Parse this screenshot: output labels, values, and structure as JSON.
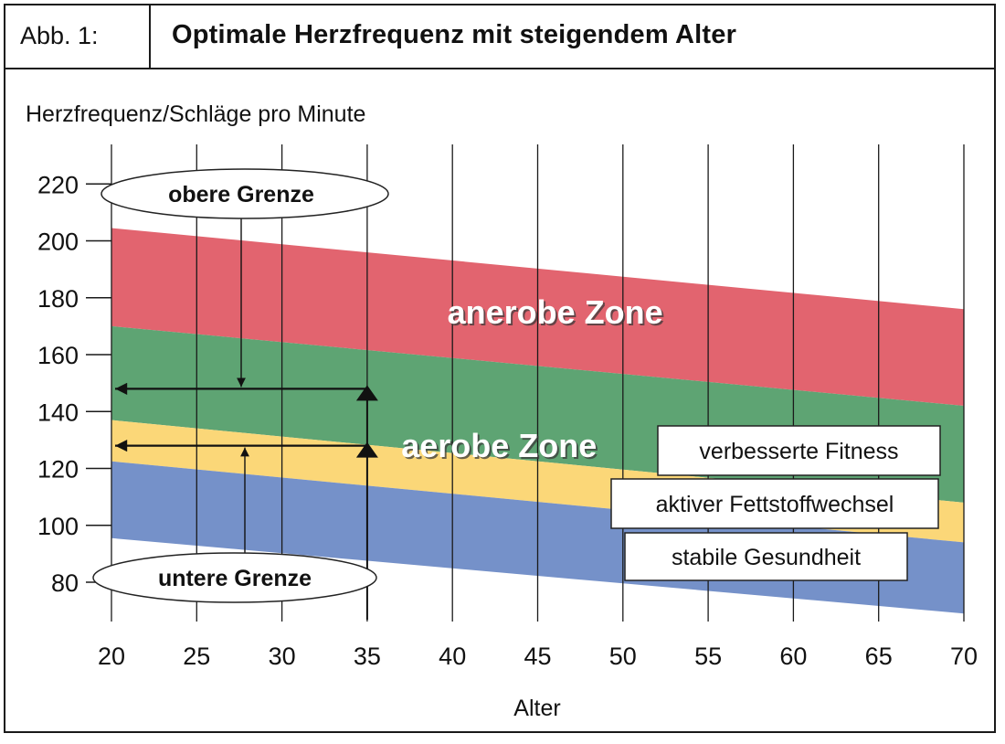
{
  "figure": {
    "number": "Abb. 1:",
    "title": "Optimale Herzfrequenz mit steigendem Alter"
  },
  "colors": {
    "anaerob": "#e2646f",
    "aerob": "#5ea473",
    "fett": "#fbd778",
    "gesund": "#7591c9",
    "grid": "#1a1a1a",
    "arrow": "#111111"
  },
  "chart_data": {
    "type": "area",
    "title": "Optimale Herzfrequenz mit steigendem Alter",
    "xlabel": "Alter",
    "ylabel": "Herzfrequenz/Schläge pro Minute",
    "x": [
      20,
      70
    ],
    "xlim": [
      20,
      70
    ],
    "ylim": [
      72,
      225
    ],
    "xticks": [
      20,
      25,
      30,
      35,
      40,
      45,
      50,
      55,
      60,
      65,
      70
    ],
    "yticks": [
      80,
      100,
      120,
      140,
      160,
      180,
      200,
      220
    ],
    "grid": "vertical",
    "boundaries": {
      "top": [
        204.5,
        176
      ],
      "upper_zone_limit": [
        170,
        142
      ],
      "aerob_limit": [
        137,
        108
      ],
      "fett_limit": [
        122.5,
        94
      ],
      "bottom": [
        95.5,
        69
      ]
    },
    "series": [
      {
        "key": "anaerob",
        "name": "anerobe Zone",
        "band": [
          "upper_zone_limit",
          "top"
        ],
        "color_key": "anaerob"
      },
      {
        "key": "aerob",
        "name": "verbesserte Fitness",
        "band": [
          "aerob_limit",
          "upper_zone_limit"
        ],
        "color_key": "aerob"
      },
      {
        "key": "fett",
        "name": "aktiver Fettstoffwechsel",
        "band": [
          "fett_limit",
          "aerob_limit"
        ],
        "color_key": "fett"
      },
      {
        "key": "gesund",
        "name": "stabile Gesundheit",
        "band": [
          "bottom",
          "fett_limit"
        ],
        "color_key": "gesund"
      }
    ],
    "zone_labels": [
      {
        "key": "anaerob",
        "text": "anerobe Zone",
        "x": 39.7,
        "y": 171
      },
      {
        "key": "aerob",
        "text": "aerobe Zone",
        "x": 37,
        "y": 124
      }
    ],
    "legend_boxes": [
      {
        "key": "aerob",
        "text": "verbesserte Fitness"
      },
      {
        "key": "fett",
        "text": "aktiver Fettstoffwechsel"
      },
      {
        "key": "gesund",
        "text": "stabile Gesundheit"
      }
    ],
    "example": {
      "age": 35,
      "upper_limit": 148,
      "lower_limit": 128,
      "upper_label": "obere Grenze",
      "lower_label": "untere Grenze"
    }
  }
}
